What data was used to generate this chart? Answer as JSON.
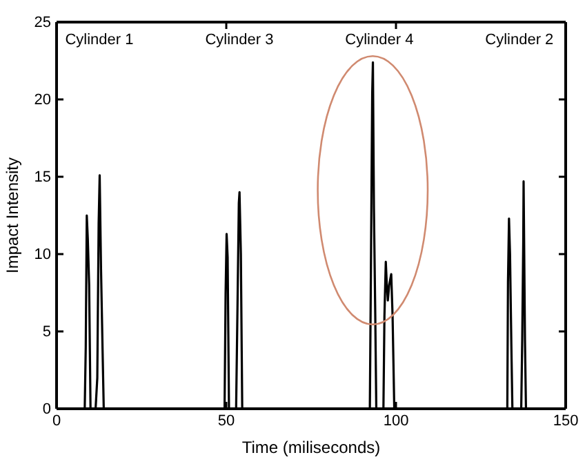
{
  "chart_data": {
    "type": "line",
    "xlabel": "Time (miliseconds)",
    "ylabel": "Impact Intensity",
    "xlim": [
      0,
      150
    ],
    "xticks": [
      0,
      50,
      100,
      150
    ],
    "ylim": [
      0,
      25
    ],
    "yticks": [
      0,
      5,
      10,
      15,
      20,
      25
    ],
    "grid": false,
    "marker": "none",
    "line_style": "solid",
    "series": [
      {
        "color": "#000000",
        "x": [
          0,
          8.3,
          8.6,
          8.9,
          9.2,
          9.6,
          10.0,
          11.5,
          12.0,
          12.4,
          12.7,
          13.1,
          13.6,
          13.9,
          49.5,
          49.8,
          50.1,
          50.4,
          50.8,
          52.9,
          53.3,
          53.7,
          53.9,
          54.3,
          54.7,
          92.3,
          92.6,
          93.0,
          93.2,
          93.5,
          93.9,
          94.2,
          96.3,
          96.6,
          97.0,
          97.3,
          97.6,
          98.0,
          98.6,
          99.0,
          99.5,
          132.8,
          133.0,
          133.3,
          133.6,
          134.0,
          134.3,
          136.9,
          137.2,
          137.5,
          137.6,
          138.0,
          138.3,
          150
        ],
        "values": [
          0,
          0,
          4,
          12.5,
          11,
          8,
          0,
          0,
          2,
          12,
          15.1,
          9,
          3.3,
          0,
          0,
          7.4,
          11.3,
          9.8,
          0,
          0,
          6.5,
          13.3,
          14.0,
          10,
          0,
          0,
          8.5,
          20.4,
          22.4,
          13,
          6,
          0,
          0,
          6,
          9.5,
          8,
          7.0,
          8,
          8.7,
          6,
          0,
          0,
          8.2,
          12.3,
          10,
          4,
          0,
          0,
          4.5,
          10.8,
          14.7,
          4.5,
          0,
          0
        ]
      }
    ],
    "annotations": [
      "Cylinder 1",
      "Cylinder 3",
      "Cylinder 4",
      "Cylinder 2"
    ]
  }
}
